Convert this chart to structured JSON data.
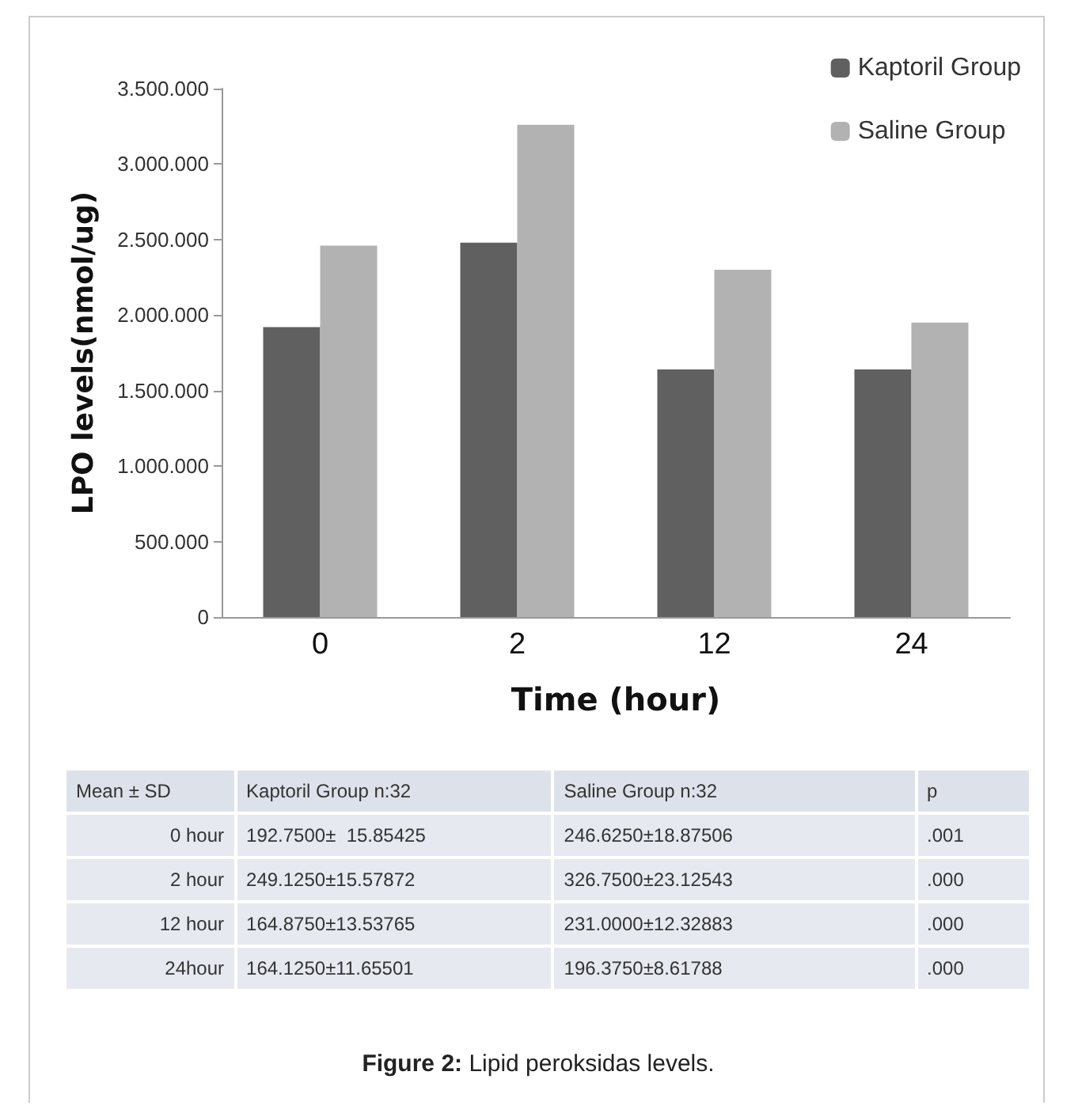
{
  "chart_data": {
    "type": "bar",
    "xlabel": "Time (hour)",
    "ylabel": "LPO levels(nmol/ug)",
    "categories": [
      "0",
      "2",
      "12",
      "24"
    ],
    "series": [
      {
        "name": "Kaptoril Group",
        "color": "#606060",
        "values": [
          1920000,
          2480000,
          1640000,
          1640000
        ]
      },
      {
        "name": "Saline Group",
        "color": "#b2b2b2",
        "values": [
          2460000,
          3260000,
          2300000,
          1950000
        ]
      }
    ],
    "ylim": [
      0,
      3500000
    ],
    "yticks": [
      0,
      {
        "value": 500000,
        "label": "500.000"
      },
      {
        "value": 1000000,
        "label": "1.000.000"
      },
      {
        "value": 1500000,
        "label": "1.500.000"
      },
      {
        "value": 2000000,
        "label": "2.000.000"
      },
      {
        "value": 2500000,
        "label": "2.500.000"
      },
      {
        "value": 3000000,
        "label": "3.000.000"
      },
      {
        "value": 3500000,
        "label": "3.500.000"
      }
    ],
    "grid": false,
    "legend": "top right",
    "annotations": [
      "Mean ± SD",
      "Kaptoril Group n:32",
      "Saline Group n:32",
      "p",
      "0 hour",
      "192.7500±  15.85425",
      "246.6250±18.87506",
      ".001",
      "2 hour",
      "249.1250±15.57872",
      "326.7500±23.12543",
      ".000",
      "12 hour",
      "164.8750±13.53765",
      "231.0000±12.32883",
      ".000",
      "24hour",
      "164.1250±11.65501",
      "196.3750±8.61788",
      ".000",
      "Figure 2: Lipid peroksidas levels."
    ]
  }
}
